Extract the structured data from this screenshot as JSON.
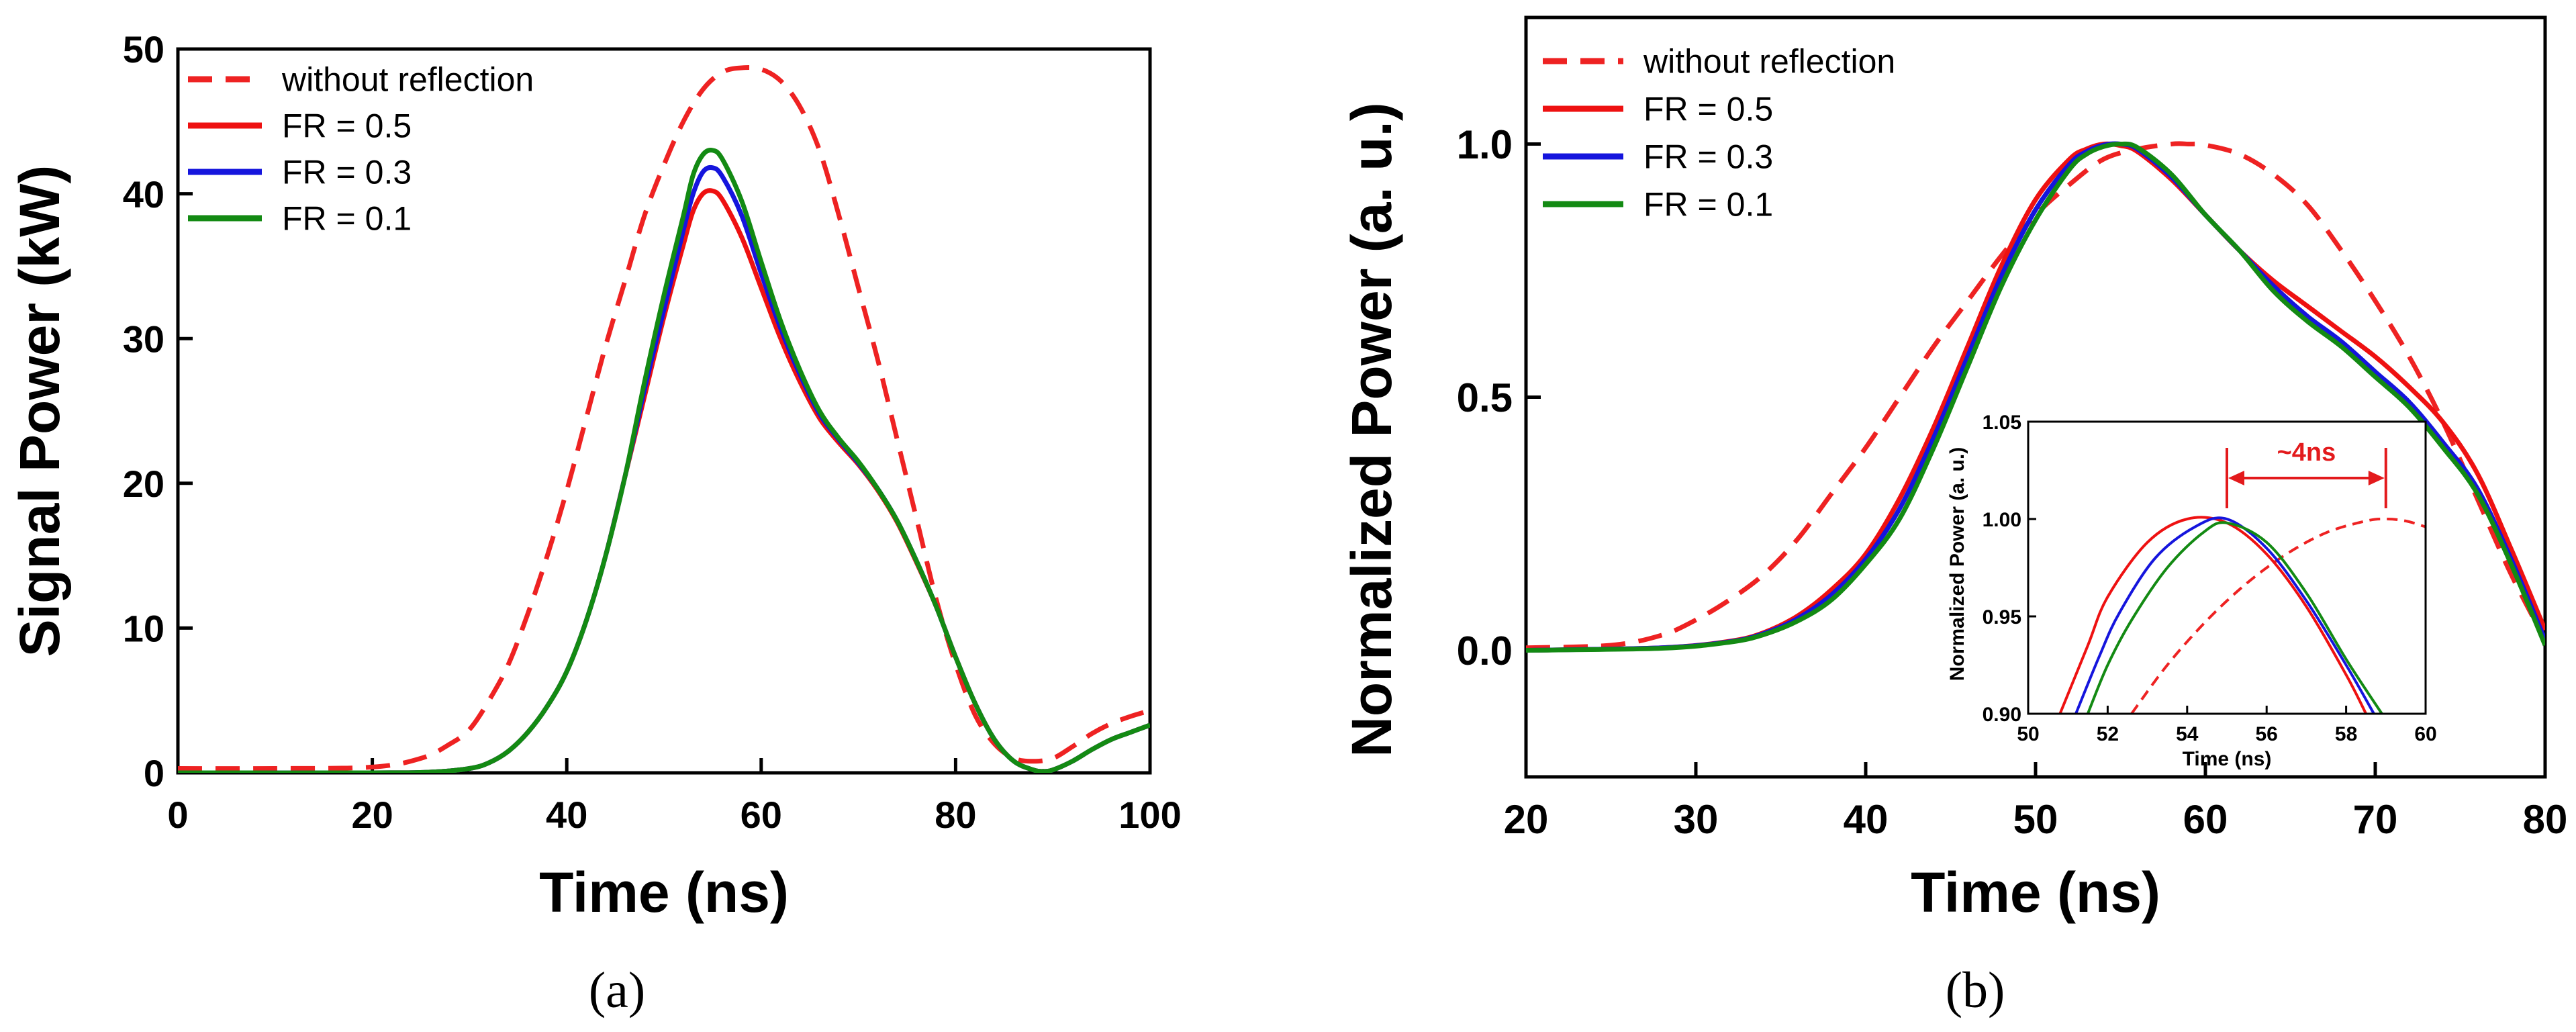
{
  "colors": {
    "without_reflection": "#ee2222",
    "fr05": "#ee1111",
    "fr03": "#1515dd",
    "fr01": "#138a13"
  },
  "chart_data": [
    {
      "type": "line",
      "caption": "(a)",
      "title": "",
      "xlabel": "Time (ns)",
      "ylabel": "Signal Power (kW)",
      "xlim": [
        0,
        100
      ],
      "ylim": [
        0,
        50
      ],
      "xticks": [
        0,
        20,
        40,
        60,
        80,
        100
      ],
      "yticks": [
        0,
        10,
        20,
        30,
        40,
        50
      ],
      "legend_position": "top-left",
      "series": [
        {
          "name": "without reflection",
          "style": "dashed",
          "color_key": "without_reflection",
          "x": [
            0,
            10,
            20,
            25,
            28,
            30,
            32,
            34,
            36,
            38,
            40,
            42,
            44,
            46,
            48,
            50,
            52,
            54,
            56,
            58,
            60,
            62,
            64,
            66,
            68,
            70,
            72,
            74,
            76,
            78,
            80,
            82,
            84,
            86,
            88,
            90,
            92,
            94,
            96,
            98,
            100
          ],
          "y": [
            0.3,
            0.3,
            0.4,
            1.0,
            2.0,
            3.0,
            5.0,
            7.5,
            11.0,
            15.0,
            19.5,
            24.5,
            29.5,
            34.0,
            38.5,
            42.0,
            45.0,
            47.2,
            48.4,
            48.7,
            48.6,
            47.8,
            46.0,
            43.0,
            38.5,
            33.5,
            28.5,
            23.0,
            17.5,
            12.0,
            7.5,
            4.0,
            2.0,
            1.0,
            0.8,
            1.0,
            1.8,
            2.7,
            3.4,
            3.9,
            4.3
          ]
        },
        {
          "name": "FR = 0.5",
          "style": "solid",
          "color_key": "fr05",
          "x": [
            0,
            20,
            26,
            30,
            32,
            34,
            36,
            38,
            40,
            42,
            44,
            46,
            48,
            50,
            52,
            53,
            54,
            55,
            56,
            58,
            60,
            62,
            64,
            66,
            68,
            70,
            72,
            74,
            76,
            78,
            80,
            82,
            84,
            86,
            88,
            89,
            90,
            92,
            94,
            96,
            98,
            100
          ],
          "y": [
            0,
            0,
            0.05,
            0.3,
            0.7,
            1.5,
            2.8,
            4.6,
            7.0,
            10.5,
            15.0,
            20.5,
            26.0,
            31.5,
            36.5,
            38.8,
            40.0,
            40.2,
            39.6,
            37.0,
            33.5,
            30.0,
            27.0,
            24.5,
            22.8,
            21.3,
            19.5,
            17.3,
            14.5,
            11.5,
            8.0,
            4.8,
            2.3,
            0.8,
            0.2,
            0.1,
            0.2,
            0.8,
            1.6,
            2.3,
            2.8,
            3.3
          ]
        },
        {
          "name": "FR = 0.3",
          "style": "solid",
          "color_key": "fr03",
          "x": [
            0,
            20,
            26,
            30,
            32,
            34,
            36,
            38,
            40,
            42,
            44,
            46,
            48,
            50,
            52,
            53,
            54,
            55,
            56,
            58,
            60,
            62,
            64,
            66,
            68,
            70,
            72,
            74,
            76,
            78,
            80,
            82,
            84,
            86,
            88,
            89,
            90,
            92,
            94,
            96,
            98,
            100
          ],
          "y": [
            0,
            0,
            0.05,
            0.3,
            0.7,
            1.5,
            2.8,
            4.6,
            7.0,
            10.5,
            15.0,
            20.5,
            26.5,
            32.0,
            37.5,
            40.0,
            41.5,
            41.8,
            41.2,
            38.5,
            34.5,
            30.7,
            27.5,
            24.8,
            23.0,
            21.4,
            19.6,
            17.4,
            14.6,
            11.5,
            8.0,
            4.8,
            2.3,
            0.8,
            0.2,
            0.1,
            0.2,
            0.8,
            1.6,
            2.3,
            2.8,
            3.3
          ]
        },
        {
          "name": "FR = 0.1",
          "style": "solid",
          "color_key": "fr01",
          "x": [
            0,
            20,
            26,
            30,
            32,
            34,
            36,
            38,
            40,
            42,
            44,
            46,
            48,
            50,
            52,
            53,
            54,
            55,
            56,
            58,
            60,
            62,
            64,
            66,
            68,
            70,
            72,
            74,
            76,
            78,
            80,
            82,
            84,
            86,
            88,
            89,
            90,
            92,
            94,
            96,
            98,
            100
          ],
          "y": [
            0,
            0,
            0.05,
            0.3,
            0.7,
            1.5,
            2.8,
            4.6,
            7.0,
            10.5,
            15.0,
            20.5,
            27.0,
            33.0,
            38.5,
            41.3,
            42.7,
            43.0,
            42.4,
            39.5,
            35.3,
            31.2,
            27.8,
            25.0,
            23.1,
            21.5,
            19.6,
            17.4,
            14.6,
            11.5,
            8.0,
            4.8,
            2.3,
            0.8,
            0.2,
            0.1,
            0.2,
            0.8,
            1.6,
            2.3,
            2.8,
            3.3
          ]
        }
      ]
    },
    {
      "type": "line",
      "caption": "(b)",
      "title": "",
      "xlabel": "Time (ns)",
      "ylabel": "Normalized Power (a. u.)",
      "xlim": [
        20,
        80
      ],
      "ylim": [
        -0.25,
        1.25
      ],
      "xticks": [
        20,
        30,
        40,
        50,
        60,
        70,
        80
      ],
      "yticks": [
        0.0,
        0.5,
        1.0
      ],
      "ytick_labels": [
        "0.0",
        "0.5",
        "1.0"
      ],
      "legend_position": "top-left",
      "series": [
        {
          "name": "without reflection",
          "style": "dashed",
          "color_key": "without_reflection",
          "x": [
            20,
            25,
            28,
            30,
            32,
            34,
            36,
            38,
            40,
            42,
            44,
            46,
            48,
            50,
            52,
            54,
            56,
            58,
            59,
            60,
            62,
            64,
            66,
            68,
            70,
            72,
            74,
            76,
            78,
            80
          ],
          "y": [
            0.005,
            0.01,
            0.03,
            0.06,
            0.1,
            0.15,
            0.22,
            0.31,
            0.4,
            0.5,
            0.6,
            0.69,
            0.78,
            0.86,
            0.92,
            0.97,
            0.99,
            1.0,
            1.0,
            0.998,
            0.98,
            0.94,
            0.88,
            0.79,
            0.69,
            0.58,
            0.45,
            0.3,
            0.15,
            0.02
          ]
        },
        {
          "name": "FR = 0.5",
          "style": "solid",
          "color_key": "fr05",
          "x": [
            20,
            28,
            32,
            34,
            36,
            38,
            40,
            42,
            44,
            46,
            48,
            50,
            52,
            53,
            54,
            55,
            56,
            58,
            60,
            62,
            64,
            66,
            68,
            70,
            72,
            74,
            76,
            78,
            80
          ],
          "y": [
            0,
            0.005,
            0.018,
            0.035,
            0.068,
            0.12,
            0.19,
            0.3,
            0.44,
            0.6,
            0.76,
            0.89,
            0.97,
            0.99,
            1.0,
            0.997,
            0.985,
            0.93,
            0.86,
            0.79,
            0.73,
            0.68,
            0.63,
            0.58,
            0.52,
            0.45,
            0.35,
            0.2,
            0.04
          ]
        },
        {
          "name": "FR = 0.3",
          "style": "solid",
          "color_key": "fr03",
          "x": [
            20,
            28,
            32,
            34,
            36,
            38,
            40,
            42,
            44,
            46,
            48,
            50,
            52,
            53,
            54,
            55,
            56,
            58,
            60,
            62,
            64,
            66,
            68,
            70,
            72,
            74,
            76,
            78,
            80
          ],
          "y": [
            0,
            0.005,
            0.017,
            0.033,
            0.063,
            0.11,
            0.18,
            0.28,
            0.42,
            0.58,
            0.74,
            0.87,
            0.96,
            0.985,
            0.998,
            1.0,
            0.99,
            0.935,
            0.86,
            0.79,
            0.72,
            0.66,
            0.61,
            0.55,
            0.49,
            0.41,
            0.32,
            0.18,
            0.02
          ]
        },
        {
          "name": "FR = 0.1",
          "style": "solid",
          "color_key": "fr01",
          "x": [
            20,
            28,
            32,
            34,
            36,
            38,
            40,
            42,
            44,
            46,
            48,
            50,
            52,
            53,
            54,
            55,
            56,
            58,
            60,
            62,
            64,
            66,
            68,
            70,
            72,
            74,
            76,
            78,
            80
          ],
          "y": [
            0,
            0.004,
            0.016,
            0.031,
            0.058,
            0.1,
            0.17,
            0.26,
            0.4,
            0.56,
            0.72,
            0.85,
            0.95,
            0.98,
            0.995,
            1.0,
            0.993,
            0.94,
            0.86,
            0.79,
            0.71,
            0.65,
            0.6,
            0.54,
            0.48,
            0.4,
            0.31,
            0.17,
            0.01
          ]
        }
      ],
      "inset": {
        "xlabel": "Time (ns)",
        "ylabel": "Normalized Power (a. u.)",
        "xlim": [
          50,
          60
        ],
        "ylim": [
          0.9,
          1.05
        ],
        "xticks": [
          50,
          52,
          54,
          56,
          58,
          60
        ],
        "yticks": [
          0.9,
          0.95,
          1.0,
          1.05
        ],
        "ytick_labels": [
          "0.90",
          "0.95",
          "1.00",
          "1.05"
        ],
        "annotation": "~4ns",
        "annotation_range": [
          55,
          59
        ],
        "series": [
          {
            "name": "without reflection",
            "style": "dashed",
            "color_key": "without_reflection",
            "x": [
              52.6,
              53.5,
              54.5,
              55.5,
              56.5,
              57.5,
              58.5,
              59.0,
              59.5,
              60.0
            ],
            "y": [
              0.9,
              0.925,
              0.948,
              0.967,
              0.982,
              0.993,
              0.999,
              1.0,
              0.999,
              0.996
            ]
          },
          {
            "name": "FR = 0.5",
            "style": "solid",
            "color_key": "fr05",
            "x": [
              50.8,
              51.5,
              52.0,
              53.0,
              54.0,
              55.0,
              56.0,
              57.0,
              58.0,
              58.5
            ],
            "y": [
              0.9,
              0.935,
              0.96,
              0.988,
              1.0,
              0.998,
              0.982,
              0.955,
              0.92,
              0.9
            ]
          },
          {
            "name": "FR = 0.3",
            "style": "solid",
            "color_key": "fr03",
            "x": [
              51.2,
              51.8,
              52.3,
              53.2,
              54.2,
              55.0,
              56.0,
              57.0,
              58.0,
              58.7
            ],
            "y": [
              0.9,
              0.93,
              0.952,
              0.98,
              0.996,
              1.0,
              0.985,
              0.958,
              0.925,
              0.9
            ]
          },
          {
            "name": "FR = 0.1",
            "style": "solid",
            "color_key": "fr01",
            "x": [
              51.5,
              52.0,
              52.6,
              53.5,
              54.4,
              55.0,
              56.0,
              57.0,
              58.0,
              58.9
            ],
            "y": [
              0.9,
              0.925,
              0.948,
              0.975,
              0.993,
              0.998,
              0.988,
              0.962,
              0.928,
              0.9
            ]
          }
        ]
      }
    }
  ]
}
